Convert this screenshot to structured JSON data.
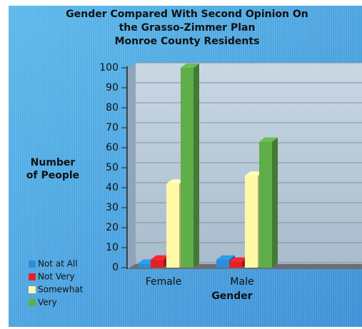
{
  "chart_data": {
    "type": "bar3d",
    "title": [
      "Gender Compared With Second Opinion On",
      "the Grasso-Zimmer Plan",
      "Monroe County Residents"
    ],
    "ylabel": [
      "Number",
      "of People"
    ],
    "xlabel": "Gender",
    "categories": [
      "Female",
      "Male"
    ],
    "series": [
      {
        "name": "Not at All",
        "color": "#2a8fd8",
        "values": [
          2,
          4
        ]
      },
      {
        "name": "Not Very",
        "color": "#e3202a",
        "values": [
          4,
          3
        ]
      },
      {
        "name": "Somewhat",
        "color": "#fff8a6",
        "values": [
          42,
          46
        ]
      },
      {
        "name": "Very",
        "color": "#5fae4a",
        "values": [
          100,
          63
        ]
      }
    ],
    "ylim": [
      0,
      100
    ],
    "yticks": [
      0,
      10,
      20,
      30,
      40,
      50,
      60,
      70,
      80,
      90,
      100
    ],
    "grid": true
  }
}
